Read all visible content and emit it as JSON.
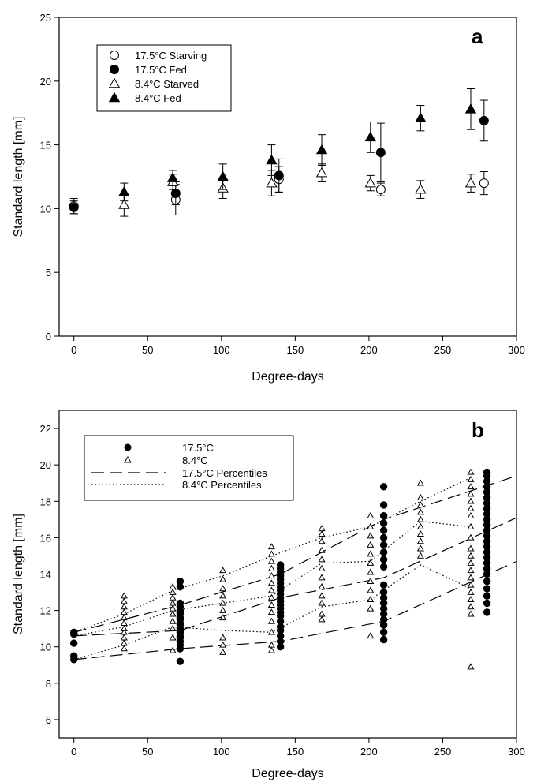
{
  "chart_data": [
    {
      "type": "scatter",
      "panel_label": "a",
      "xlabel": "Degree-days",
      "ylabel": "Standard length [mm]",
      "xlim": [
        -10,
        300
      ],
      "ylim": [
        0,
        25
      ],
      "xticks": [
        0,
        50,
        100,
        150,
        200,
        250,
        300
      ],
      "yticks": [
        0,
        5,
        10,
        15,
        20,
        25
      ],
      "legend_position": "top-left",
      "series": [
        {
          "name": "17.5°C Starving",
          "marker": "circle-open",
          "points": [
            {
              "x": 0,
              "y": 10.2,
              "err": 0.6
            },
            {
              "x": 69,
              "y": 10.7,
              "err": 1.2
            },
            {
              "x": 139,
              "y": 12.3,
              "err": 1.0
            },
            {
              "x": 208,
              "y": 11.5,
              "err": 0.5
            },
            {
              "x": 278,
              "y": 12.0,
              "err": 0.9
            }
          ]
        },
        {
          "name": "17.5°C Fed",
          "marker": "circle-filled",
          "points": [
            {
              "x": 0,
              "y": 10.1,
              "err": 0.5
            },
            {
              "x": 69,
              "y": 11.2,
              "err": 0.9
            },
            {
              "x": 139,
              "y": 12.6,
              "err": 1.3
            },
            {
              "x": 208,
              "y": 14.4,
              "err": 2.3
            },
            {
              "x": 278,
              "y": 16.9,
              "err": 1.6
            }
          ]
        },
        {
          "name": "8.4°C Starved",
          "marker": "triangle-open",
          "points": [
            {
              "x": 34,
              "y": 10.3,
              "err": 0.9
            },
            {
              "x": 67,
              "y": 12.1,
              "err": 0.6
            },
            {
              "x": 101,
              "y": 11.6,
              "err": 0.8
            },
            {
              "x": 134,
              "y": 12.0,
              "err": 1.0
            },
            {
              "x": 168,
              "y": 12.8,
              "err": 0.7
            },
            {
              "x": 201,
              "y": 12.0,
              "err": 0.6
            },
            {
              "x": 235,
              "y": 11.5,
              "err": 0.7
            },
            {
              "x": 269,
              "y": 12.0,
              "err": 0.7
            }
          ]
        },
        {
          "name": "8.4°C Fed",
          "marker": "triangle-filled",
          "points": [
            {
              "x": 34,
              "y": 11.3,
              "err": 0.7
            },
            {
              "x": 67,
              "y": 12.4,
              "err": 0.6
            },
            {
              "x": 101,
              "y": 12.5,
              "err": 1.0
            },
            {
              "x": 134,
              "y": 13.8,
              "err": 1.2
            },
            {
              "x": 168,
              "y": 14.6,
              "err": 1.2
            },
            {
              "x": 201,
              "y": 15.6,
              "err": 1.2
            },
            {
              "x": 235,
              "y": 17.1,
              "err": 1.0
            },
            {
              "x": 269,
              "y": 17.8,
              "err": 1.6
            }
          ]
        }
      ]
    },
    {
      "type": "scatter",
      "panel_label": "b",
      "xlabel": "Degree-days",
      "ylabel": "Standard length [mm]",
      "xlim": [
        -10,
        300
      ],
      "ylim": [
        5,
        23
      ],
      "xticks": [
        0,
        50,
        100,
        150,
        200,
        250,
        300
      ],
      "yticks": [
        6,
        8,
        10,
        12,
        14,
        16,
        18,
        20,
        22
      ],
      "legend_position": "top-left",
      "scatter_series": [
        {
          "name": "17.5°C",
          "marker": "circle-filled",
          "groups": [
            {
              "x": 0,
              "values": [
                9.3,
                9.5,
                10.2,
                10.7,
                10.8
              ]
            },
            {
              "x": 72,
              "values": [
                9.2,
                9.9,
                10.1,
                10.3,
                10.5,
                10.6,
                10.8,
                10.9,
                11.0,
                11.2,
                11.3,
                11.5,
                11.6,
                11.8,
                11.9,
                12.0,
                12.2,
                12.4,
                13.3,
                13.6
              ]
            },
            {
              "x": 140,
              "values": [
                10.0,
                10.3,
                10.6,
                10.9,
                11.1,
                11.4,
                11.7,
                11.9,
                12.1,
                12.3,
                12.5,
                12.7,
                12.9,
                13.1,
                13.3,
                13.5,
                13.7,
                13.9,
                14.1,
                14.3,
                14.5
              ]
            },
            {
              "x": 210,
              "values": [
                10.4,
                10.8,
                11.2,
                11.5,
                11.8,
                12.1,
                12.4,
                12.7,
                13.0,
                13.4,
                14.4,
                14.8,
                15.2,
                15.6,
                16.0,
                16.4,
                16.8,
                17.2,
                17.8,
                18.8
              ]
            },
            {
              "x": 280,
              "values": [
                11.9,
                12.4,
                12.8,
                13.2,
                13.6,
                14.0,
                14.3,
                14.6,
                14.9,
                15.2,
                15.5,
                15.8,
                16.1,
                16.4,
                16.7,
                17.0,
                17.3,
                17.6,
                17.9,
                18.2,
                18.5,
                18.8,
                19.1,
                19.4,
                19.6
              ]
            }
          ]
        },
        {
          "name": "8.4°C",
          "marker": "triangle-open",
          "groups": [
            {
              "x": 34,
              "values": [
                9.9,
                10.2,
                10.5,
                10.8,
                11.0,
                11.3,
                11.6,
                11.9,
                12.2,
                12.5,
                12.8
              ]
            },
            {
              "x": 67,
              "values": [
                9.8,
                10.5,
                11.0,
                11.4,
                11.8,
                12.1,
                12.4,
                12.7,
                13.0,
                13.3
              ]
            },
            {
              "x": 101,
              "values": [
                9.7,
                10.1,
                10.5,
                11.6,
                12.0,
                12.4,
                12.8,
                13.2,
                13.7,
                14.2
              ]
            },
            {
              "x": 134,
              "values": [
                9.8,
                10.1,
                10.8,
                11.4,
                11.9,
                12.3,
                12.7,
                13.1,
                13.5,
                13.9,
                14.3,
                14.7,
                15.1,
                15.5
              ]
            },
            {
              "x": 168,
              "values": [
                11.5,
                11.8,
                12.4,
                12.8,
                13.3,
                13.8,
                14.3,
                14.8,
                15.3,
                15.8,
                16.2,
                16.5
              ]
            },
            {
              "x": 201,
              "values": [
                10.6,
                12.1,
                12.6,
                13.1,
                13.6,
                14.1,
                14.6,
                15.1,
                15.6,
                16.1,
                16.6,
                17.2
              ]
            },
            {
              "x": 235,
              "values": [
                15.0,
                15.4,
                15.8,
                16.2,
                16.6,
                17.0,
                17.4,
                17.8,
                18.2,
                19.0
              ]
            },
            {
              "x": 269,
              "values": [
                8.9,
                11.8,
                12.2,
                12.6,
                13.0,
                13.4,
                13.8,
                14.2,
                14.6,
                15.0,
                15.4,
                16.0,
                16.6,
                17.2,
                17.6,
                18.0,
                18.4,
                18.8,
                19.2,
                19.6
              ]
            }
          ]
        }
      ],
      "line_series": [
        {
          "name": "17.5°C Percentiles",
          "style": "dashed",
          "lines": [
            {
              "x": [
                0,
                72,
                140,
                210,
                300
              ],
              "y": [
                10.8,
                12.3,
                14.0,
                17.0,
                19.4
              ]
            },
            {
              "x": [
                0,
                72,
                140,
                210,
                300
              ],
              "y": [
                10.6,
                10.9,
                12.7,
                13.8,
                17.1
              ]
            },
            {
              "x": [
                0,
                72,
                140,
                210,
                300
              ],
              "y": [
                9.3,
                9.9,
                10.3,
                11.4,
                14.7
              ]
            }
          ]
        },
        {
          "name": "8.4°C Percentiles",
          "style": "dotted",
          "lines": [
            {
              "x": [
                0,
                34,
                67,
                101,
                134,
                168,
                201,
                235,
                269
              ],
              "y": [
                10.8,
                11.8,
                13.1,
                13.9,
                15.0,
                16.0,
                16.6,
                18.0,
                19.3
              ]
            },
            {
              "x": [
                0,
                34,
                67,
                101,
                134,
                168,
                201,
                235,
                269
              ],
              "y": [
                10.6,
                11.1,
                12.0,
                12.4,
                12.8,
                14.6,
                14.7,
                16.9,
                16.6
              ]
            },
            {
              "x": [
                0,
                34,
                67,
                101,
                134,
                168,
                201,
                235,
                269
              ],
              "y": [
                9.3,
                10.1,
                11.1,
                10.9,
                10.8,
                12.2,
                12.6,
                14.5,
                13.2
              ]
            }
          ]
        }
      ]
    }
  ]
}
